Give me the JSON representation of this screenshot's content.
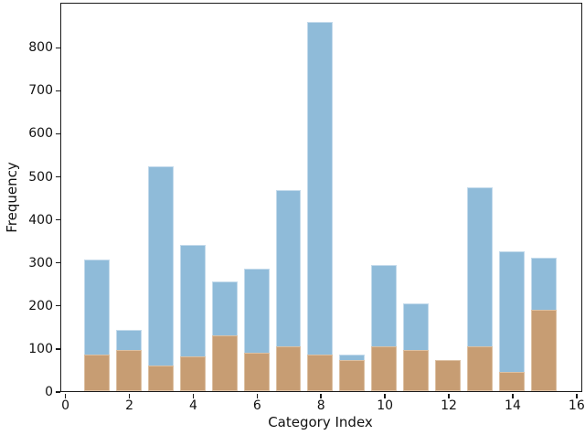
{
  "figure": {
    "background": "#ffffff",
    "spine_color": "#1a1a1a"
  },
  "chart_data": {
    "type": "bar",
    "subtype": "overlaid-histogram",
    "title": "",
    "xlabel": "Category Index",
    "ylabel": "Frequency",
    "categories": [
      1,
      2,
      3,
      4,
      5,
      6,
      7,
      8,
      9,
      10,
      11,
      12,
      13,
      14,
      15
    ],
    "series": [
      {
        "name": "blue-series",
        "color": "#8fbbd9",
        "edge_color": "#c3daeb",
        "values": [
          305,
          142,
          523,
          340,
          255,
          285,
          467,
          858,
          85,
          293,
          205,
          72,
          473,
          325,
          310
        ]
      },
      {
        "name": "tan-series",
        "color": "#c79d73",
        "edge_color": "#dcc0a2",
        "values": [
          85,
          95,
          60,
          80,
          130,
          90,
          105,
          85,
          72,
          105,
          95,
          72,
          105,
          45,
          190
        ]
      }
    ],
    "bar_width": 0.8,
    "xlim": [
      -0.11,
      16.17
    ],
    "ylim": [
      0,
      901
    ],
    "xticks": [
      0,
      2,
      4,
      6,
      8,
      10,
      12,
      14,
      16
    ],
    "yticks": [
      0,
      100,
      200,
      300,
      400,
      500,
      600,
      700,
      800
    ],
    "grid": false,
    "legend": null
  }
}
